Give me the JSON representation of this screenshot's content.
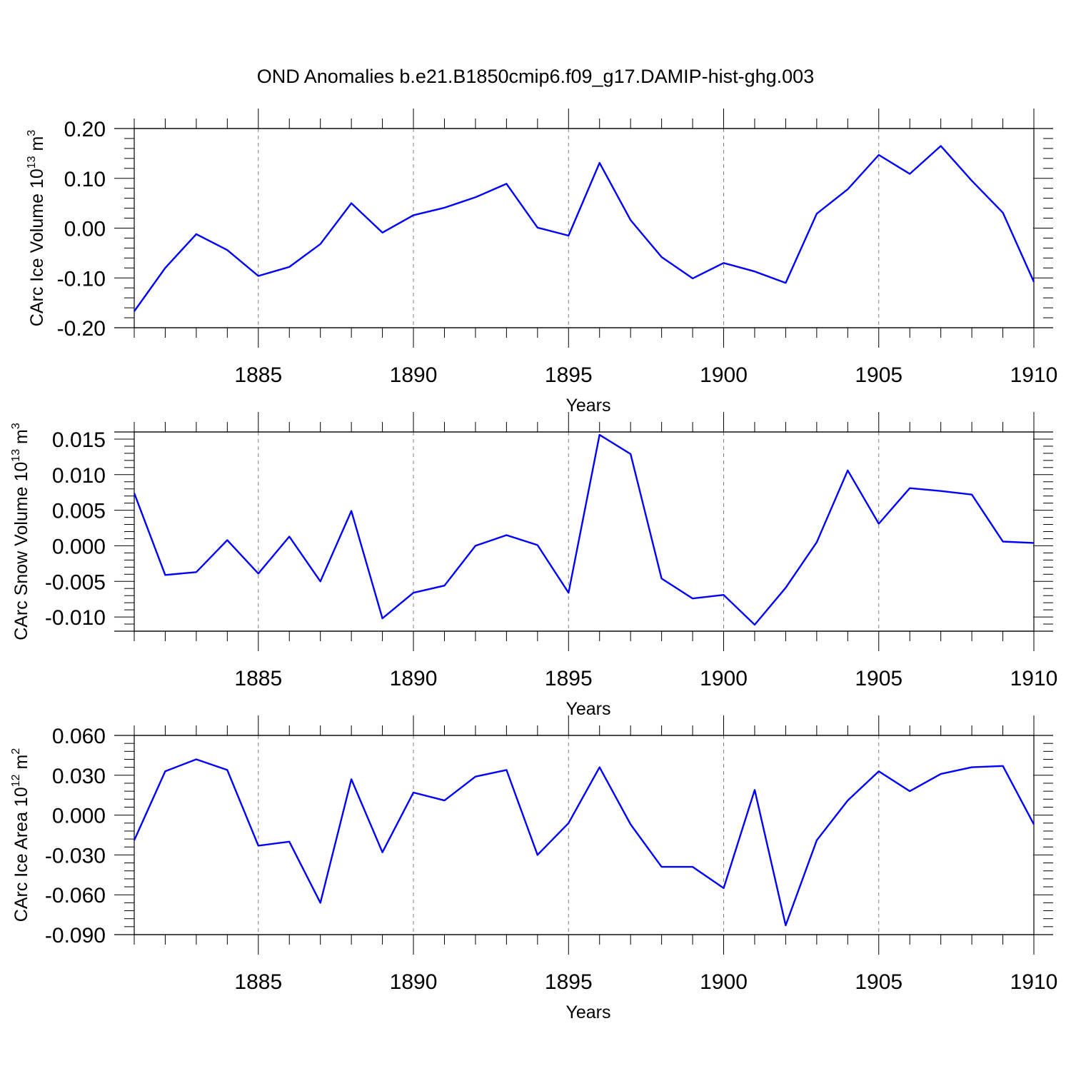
{
  "title": "OND Anomalies b.e21.B1850cmip6.f09_g17.DAMIP-hist-ghg.003",
  "colors": {
    "line": "#0000ff",
    "axis": "#000000",
    "grid": "#808080"
  },
  "chart_data": [
    {
      "type": "line",
      "ylabel": {
        "text": "CArc Ice Volume 10",
        "exp": "13",
        "unit": "m",
        "unit_exp": "3"
      },
      "xlabel": "Years",
      "xlim": [
        1881,
        1910
      ],
      "ylim": [
        -0.2,
        0.2
      ],
      "xticks": [
        1885,
        1890,
        1895,
        1900,
        1905,
        1910
      ],
      "xticklabels": [
        "1885",
        "1890",
        "1895",
        "1900",
        "1905",
        "1910"
      ],
      "yticks": [
        0.2,
        0.1,
        0.0,
        -0.1,
        -0.2
      ],
      "yticklabels": [
        "0.20",
        "0.10",
        "0.00",
        "-0.10",
        "-0.20"
      ],
      "grid_x": "dashed vertical at major ticks",
      "series": [
        {
          "x": [
            1881,
            1882,
            1883,
            1884,
            1885,
            1886,
            1887,
            1888,
            1889,
            1890,
            1891,
            1892,
            1893,
            1894,
            1895,
            1896,
            1897,
            1898,
            1899,
            1900,
            1901,
            1902,
            1903,
            1904,
            1905,
            1906,
            1907,
            1908,
            1909,
            1910
          ],
          "values": [
            -0.167,
            -0.08,
            -0.012,
            -0.044,
            -0.096,
            -0.078,
            -0.032,
            0.05,
            -0.009,
            0.026,
            0.041,
            0.062,
            0.089,
            0.001,
            -0.015,
            0.131,
            0.016,
            -0.058,
            -0.101,
            -0.07,
            -0.087,
            -0.11,
            0.029,
            0.078,
            0.147,
            0.109,
            0.165,
            0.095,
            0.031,
            -0.108
          ]
        }
      ]
    },
    {
      "type": "line",
      "ylabel": {
        "text": "CArc Snow Volume 10",
        "exp": "13",
        "unit": "m",
        "unit_exp": "3"
      },
      "xlabel": "Years",
      "xlim": [
        1881,
        1910
      ],
      "ylim": [
        -0.012,
        0.016
      ],
      "xticks": [
        1885,
        1890,
        1895,
        1900,
        1905,
        1910
      ],
      "xticklabels": [
        "1885",
        "1890",
        "1895",
        "1900",
        "1905",
        "1910"
      ],
      "yticks": [
        0.015,
        0.01,
        0.005,
        0.0,
        -0.005,
        -0.01
      ],
      "yticklabels": [
        "0.015",
        "0.010",
        "0.005",
        "0.000",
        "-0.005",
        "-0.010"
      ],
      "grid_x": "dashed vertical at major ticks",
      "series": [
        {
          "x": [
            1881,
            1882,
            1883,
            1884,
            1885,
            1886,
            1887,
            1888,
            1889,
            1890,
            1891,
            1892,
            1893,
            1894,
            1895,
            1896,
            1897,
            1898,
            1899,
            1900,
            1901,
            1902,
            1903,
            1904,
            1905,
            1906,
            1907,
            1908,
            1909,
            1910
          ],
          "values": [
            0.0074,
            -0.0041,
            -0.0037,
            0.0008,
            -0.0039,
            0.0013,
            -0.005,
            0.0049,
            -0.0102,
            -0.0066,
            -0.0056,
            0.0,
            0.0015,
            0.0001,
            -0.0066,
            0.0156,
            0.0129,
            -0.0046,
            -0.0074,
            -0.0069,
            -0.0111,
            -0.0059,
            0.0005,
            0.0106,
            0.0031,
            0.0081,
            0.0077,
            0.0072,
            0.0006,
            0.0004
          ]
        }
      ]
    },
    {
      "type": "line",
      "ylabel": {
        "text": "CArc Ice Area 10",
        "exp": "12",
        "unit": "m",
        "unit_exp": "2"
      },
      "xlabel": "Years",
      "xlim": [
        1881,
        1910
      ],
      "ylim": [
        -0.09,
        0.06
      ],
      "xticks": [
        1885,
        1890,
        1895,
        1900,
        1905,
        1910
      ],
      "xticklabels": [
        "1885",
        "1890",
        "1895",
        "1900",
        "1905",
        "1910"
      ],
      "yticks": [
        0.06,
        0.03,
        0.0,
        -0.03,
        -0.06,
        -0.09
      ],
      "yticklabels": [
        "0.060",
        "0.030",
        "0.000",
        "-0.030",
        "-0.060",
        "-0.090"
      ],
      "grid_x": "dashed vertical at major ticks",
      "series": [
        {
          "x": [
            1881,
            1882,
            1883,
            1884,
            1885,
            1886,
            1887,
            1888,
            1889,
            1890,
            1891,
            1892,
            1893,
            1894,
            1895,
            1896,
            1897,
            1898,
            1899,
            1900,
            1901,
            1902,
            1903,
            1904,
            1905,
            1906,
            1907,
            1908,
            1909,
            1910
          ],
          "values": [
            -0.019,
            0.033,
            0.042,
            0.034,
            -0.023,
            -0.02,
            -0.066,
            0.027,
            -0.028,
            0.017,
            0.011,
            0.029,
            0.034,
            -0.03,
            -0.006,
            0.036,
            -0.007,
            -0.039,
            -0.039,
            -0.055,
            0.019,
            -0.083,
            -0.019,
            0.011,
            0.033,
            0.018,
            0.031,
            0.036,
            0.037,
            -0.007
          ]
        }
      ]
    }
  ]
}
